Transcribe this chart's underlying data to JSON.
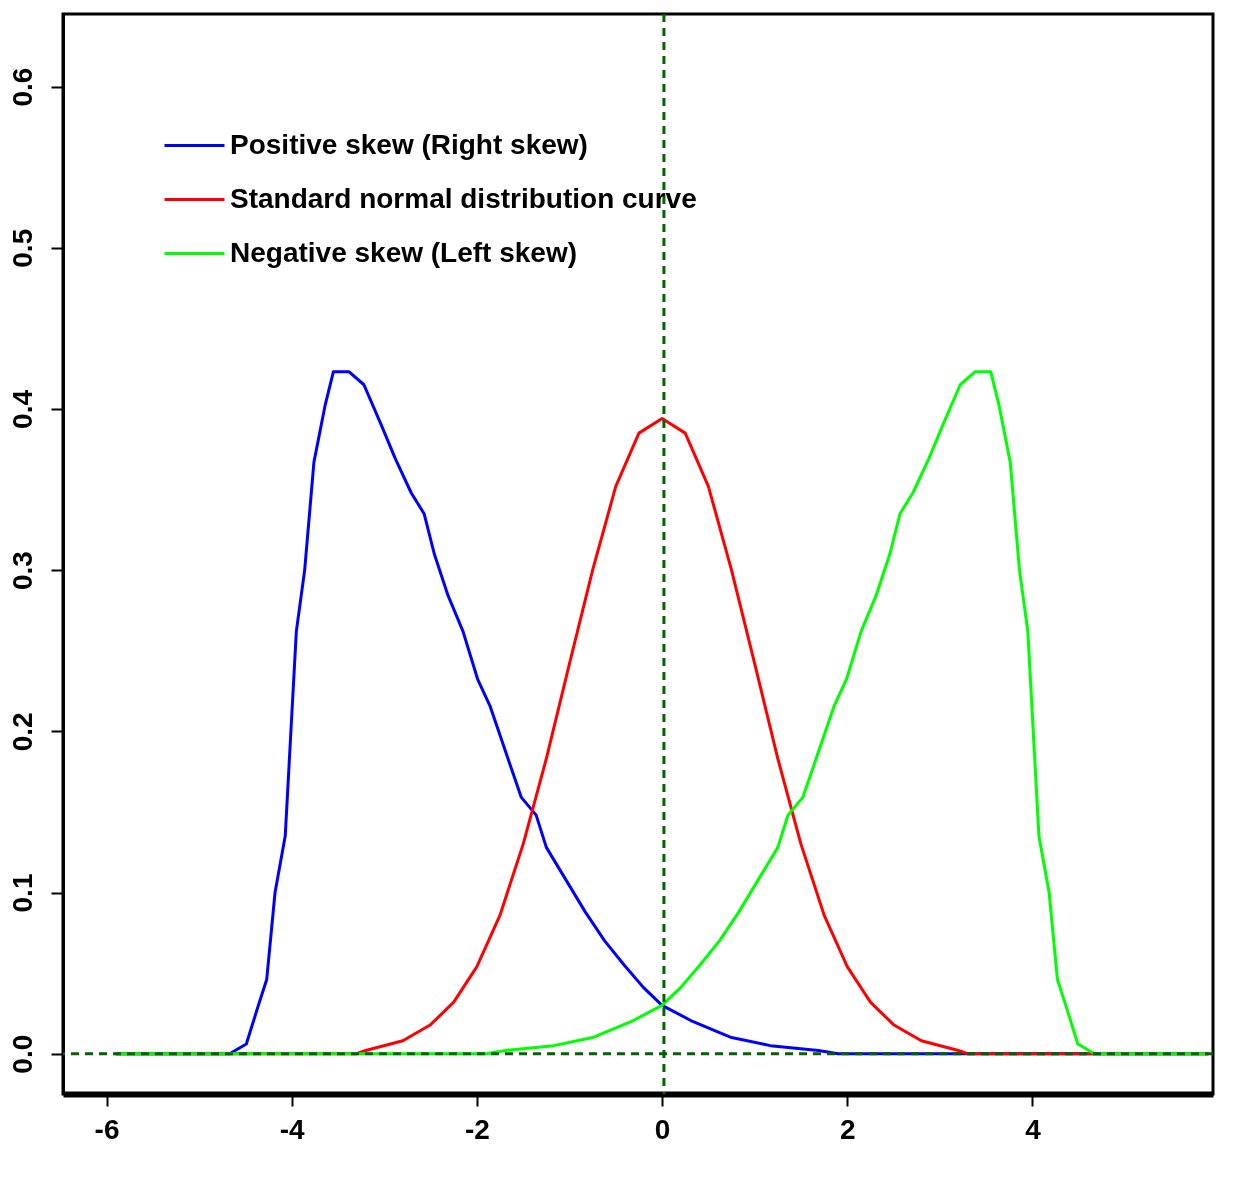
{
  "chart_data": {
    "type": "line",
    "xlim": [
      -6.47,
      5.95
    ],
    "ylim": [
      -0.025,
      0.645
    ],
    "xticks": [
      -6,
      -4,
      -2,
      0,
      2,
      4
    ],
    "yticks": [
      {
        "value": 0,
        "label": "0.0"
      },
      {
        "value": 0.1,
        "label": "0.1"
      },
      {
        "value": 0.2,
        "label": "0.2"
      },
      {
        "value": 0.3,
        "label": "0.3"
      },
      {
        "value": 0.4,
        "label": "0.4"
      },
      {
        "value": 0.5,
        "label": "0.5"
      },
      {
        "value": 0.6,
        "label": "0.6"
      }
    ],
    "legend": "top left",
    "line_style": "solid",
    "marker": "none",
    "series": [
      {
        "name": "Positive skew (Right skew)",
        "color": "#0000ff",
        "x": [
          -5.9,
          -4.67,
          -4.49,
          -4.36,
          -4.27,
          -4.18,
          -4.07,
          -3.95,
          -3.86,
          -3.76,
          -3.64,
          -3.55,
          -3.38,
          -3.22,
          -3.04,
          -2.88,
          -2.71,
          -2.57,
          -2.46,
          -2.31,
          -2.15,
          -1.99,
          -1.86,
          -1.67,
          -1.52,
          -1.36,
          -1.25,
          -1.04,
          -0.83,
          -0.62,
          -0.41,
          -0.2,
          0,
          0.33,
          0.75,
          1.17,
          1.69,
          1.9,
          5.9
        ],
        "values": [
          0,
          0,
          0.006,
          0.03,
          0.046,
          0.1,
          0.135,
          0.262,
          0.3,
          0.367,
          0.402,
          0.423,
          0.423,
          0.415,
          0.391,
          0.369,
          0.348,
          0.335,
          0.31,
          0.284,
          0.262,
          0.232,
          0.216,
          0.184,
          0.159,
          0.148,
          0.128,
          0.108,
          0.088,
          0.07,
          0.055,
          0.041,
          0.03,
          0.02,
          0.01,
          0.005,
          0.002,
          0,
          0
        ]
      },
      {
        "name": "Standard normal distribution curve",
        "color": "#ff0000",
        "x": [
          -5.9,
          -3.3,
          -3.2,
          -2.8,
          -2.5,
          -2.25,
          -2,
          -1.75,
          -1.5,
          -1.25,
          -1,
          -0.75,
          -0.5,
          -0.25,
          0,
          0.25,
          0.5,
          0.75,
          1,
          1.25,
          1.5,
          1.75,
          2,
          2.25,
          2.5,
          2.8,
          3.2,
          3.3,
          5.9
        ],
        "values": [
          0,
          0,
          0.002,
          0.008,
          0.018,
          0.032,
          0.054,
          0.086,
          0.13,
          0.183,
          0.242,
          0.3,
          0.352,
          0.385,
          0.394,
          0.385,
          0.352,
          0.3,
          0.242,
          0.183,
          0.13,
          0.086,
          0.054,
          0.032,
          0.018,
          0.008,
          0.002,
          0,
          0
        ]
      },
      {
        "name": "Negative skew (Left skew)",
        "color": "#00ff00",
        "x": [
          -5.9,
          -1.9,
          -1.69,
          -1.17,
          -0.75,
          -0.33,
          0,
          0.2,
          0.41,
          0.62,
          0.83,
          1.04,
          1.25,
          1.36,
          1.52,
          1.67,
          1.86,
          1.99,
          2.15,
          2.31,
          2.46,
          2.57,
          2.71,
          2.88,
          3.04,
          3.22,
          3.38,
          3.55,
          3.64,
          3.76,
          3.86,
          3.95,
          4.07,
          4.18,
          4.27,
          4.36,
          4.49,
          4.67,
          5.9
        ],
        "values": [
          0,
          0,
          0.002,
          0.005,
          0.01,
          0.02,
          0.03,
          0.041,
          0.055,
          0.07,
          0.088,
          0.108,
          0.128,
          0.148,
          0.159,
          0.184,
          0.216,
          0.232,
          0.262,
          0.284,
          0.31,
          0.335,
          0.348,
          0.369,
          0.391,
          0.415,
          0.423,
          0.423,
          0.402,
          0.367,
          0.3,
          0.262,
          0.135,
          0.1,
          0.046,
          0.03,
          0.006,
          0,
          0
        ]
      }
    ],
    "ref_lines": [
      {
        "axis": "x",
        "value": 0.02,
        "color": "#006400",
        "line_style": "dashed"
      },
      {
        "axis": "y",
        "value": 0,
        "color": "#006400",
        "line_style": "dashed"
      }
    ]
  }
}
